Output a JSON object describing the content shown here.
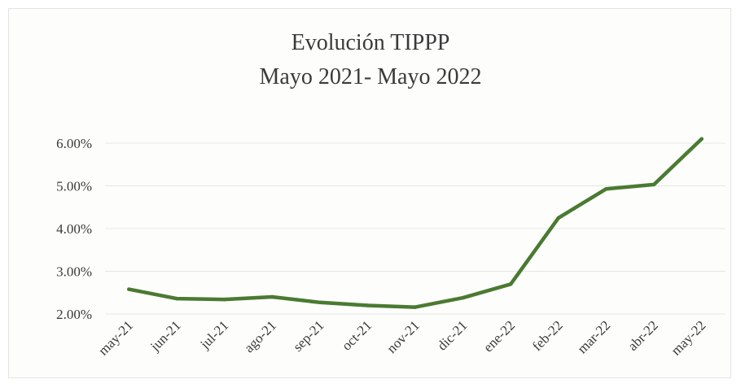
{
  "chart_data": {
    "type": "line",
    "title": "Evolución TIPPP",
    "subtitle": "Mayo 2021- Mayo 2022",
    "xlabel": "",
    "ylabel": "",
    "categories": [
      "may-21",
      "jun-21",
      "jul-21",
      "ago-21",
      "sep-21",
      "oct-21",
      "nov-21",
      "dic-21",
      "ene-22",
      "feb-22",
      "mar-22",
      "abr-22",
      "may-22"
    ],
    "series": [
      {
        "values": [
          2.58,
          2.36,
          2.34,
          2.4,
          2.27,
          2.2,
          2.16,
          2.38,
          2.7,
          4.25,
          4.93,
          5.03,
          6.1
        ]
      }
    ],
    "y_ticks": [
      "2.00%",
      "3.00%",
      "4.00%",
      "5.00%",
      "6.00%"
    ],
    "ylim": [
      2.0,
      6.0
    ],
    "grid": true,
    "legend": "none",
    "line_color": "#4a7a32",
    "grid_color": "#e6e6e6"
  }
}
